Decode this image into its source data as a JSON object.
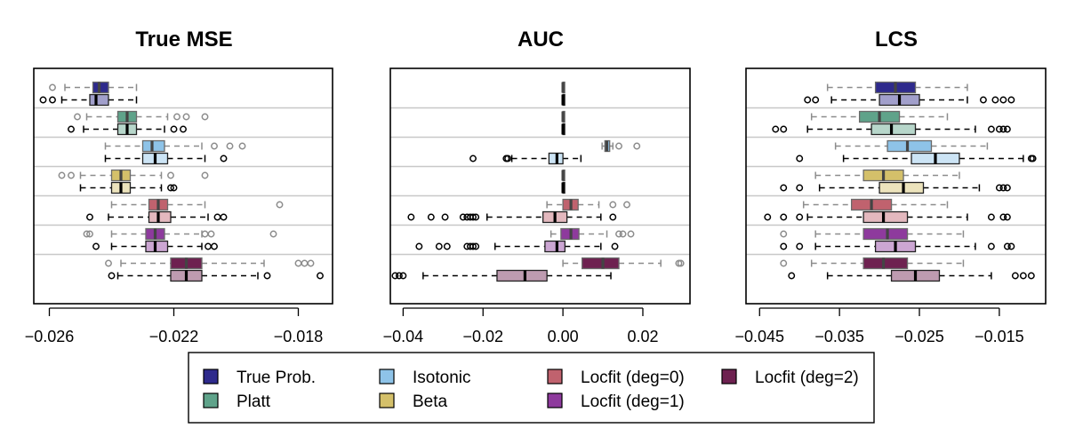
{
  "legend": {
    "entries": [
      {
        "label": "True Prob.",
        "color": "#2E2A8C"
      },
      {
        "label": "Platt",
        "color": "#5FA38A"
      },
      {
        "label": "Isotonic",
        "color": "#8EC3E8"
      },
      {
        "label": "Beta",
        "color": "#D4C06A"
      },
      {
        "label": "Locfit (deg=0)",
        "color": "#C0626E"
      },
      {
        "label": "Locfit (deg=1)",
        "color": "#8E3A9D"
      },
      {
        "label": "Locfit (deg=2)",
        "color": "#6E2150"
      }
    ]
  },
  "chart_data": [
    {
      "type": "boxplot",
      "title": "True MSE",
      "xlim": [
        -0.0265,
        -0.0169
      ],
      "xticks": [
        -0.026,
        -0.022,
        -0.018
      ],
      "xtick_labels": [
        "−0.026",
        "−0.022",
        "−0.018"
      ],
      "groups": [
        {
          "method": "True Prob.",
          "boxes": [
            {
              "variant": "light",
              "min": -0.0255,
              "q1": -0.0246,
              "median": -0.0244,
              "q3": -0.0241,
              "max": -0.0232,
              "outliers": [
                -0.0259
              ]
            },
            {
              "variant": "dark",
              "min": -0.0256,
              "q1": -0.0247,
              "median": -0.0245,
              "q3": -0.0241,
              "max": -0.0232,
              "outliers": [
                -0.0262,
                -0.0259
              ]
            }
          ]
        },
        {
          "method": "Platt",
          "boxes": [
            {
              "variant": "light",
              "min": -0.0248,
              "q1": -0.0238,
              "median": -0.0235,
              "q3": -0.0232,
              "max": -0.0222,
              "outliers": [
                -0.0251,
                -0.0219,
                -0.0216,
                -0.021
              ]
            },
            {
              "variant": "dark",
              "min": -0.0249,
              "q1": -0.0238,
              "median": -0.0235,
              "q3": -0.0232,
              "max": -0.0223,
              "outliers": [
                -0.0253,
                -0.022,
                -0.0217
              ]
            }
          ]
        },
        {
          "method": "Isotonic",
          "boxes": [
            {
              "variant": "light",
              "min": -0.0242,
              "q1": -0.023,
              "median": -0.0227,
              "q3": -0.0223,
              "max": -0.0211,
              "outliers": [
                -0.0207,
                -0.0202,
                -0.0198
              ]
            },
            {
              "variant": "dark",
              "min": -0.0242,
              "q1": -0.023,
              "median": -0.0226,
              "q3": -0.0222,
              "max": -0.021,
              "outliers": [
                -0.0204
              ]
            }
          ]
        },
        {
          "method": "Beta",
          "boxes": [
            {
              "variant": "light",
              "min": -0.025,
              "q1": -0.024,
              "median": -0.0237,
              "q3": -0.0234,
              "max": -0.0224,
              "outliers": [
                -0.0256,
                -0.0253,
                -0.0221,
                -0.021
              ]
            },
            {
              "variant": "dark",
              "min": -0.025,
              "q1": -0.024,
              "median": -0.0237,
              "q3": -0.0234,
              "max": -0.0224,
              "outliers": [
                -0.0221,
                -0.022
              ]
            }
          ]
        },
        {
          "method": "Locfit (deg=0)",
          "boxes": [
            {
              "variant": "light",
              "min": -0.024,
              "q1": -0.0228,
              "median": -0.0225,
              "q3": -0.0222,
              "max": -0.021,
              "outliers": [
                -0.0186
              ]
            },
            {
              "variant": "dark",
              "min": -0.0241,
              "q1": -0.0228,
              "median": -0.0225,
              "q3": -0.0221,
              "max": -0.0209,
              "outliers": [
                -0.0247,
                -0.0206,
                -0.0204
              ]
            }
          ]
        },
        {
          "method": "Locfit (deg=1)",
          "boxes": [
            {
              "variant": "light",
              "min": -0.024,
              "q1": -0.0229,
              "median": -0.0226,
              "q3": -0.0223,
              "max": -0.0211,
              "outliers": [
                -0.0248,
                -0.0247,
                -0.021,
                -0.0208,
                -0.0188
              ]
            },
            {
              "variant": "dark",
              "min": -0.024,
              "q1": -0.0229,
              "median": -0.0226,
              "q3": -0.0222,
              "max": -0.0211,
              "outliers": [
                -0.0245,
                -0.0209,
                -0.0207
              ]
            }
          ]
        },
        {
          "method": "Locfit (deg=2)",
          "boxes": [
            {
              "variant": "light",
              "min": -0.0237,
              "q1": -0.0221,
              "median": -0.0216,
              "q3": -0.0211,
              "max": -0.0191,
              "outliers": [
                -0.0241,
                -0.018,
                -0.0178,
                -0.0176
              ]
            },
            {
              "variant": "dark",
              "min": -0.0238,
              "q1": -0.0221,
              "median": -0.0216,
              "q3": -0.0211,
              "max": -0.0193,
              "outliers": [
                -0.024,
                -0.019,
                -0.0173
              ]
            }
          ]
        }
      ]
    },
    {
      "type": "boxplot",
      "title": "AUC",
      "xlim": [
        -0.0432,
        0.0318
      ],
      "xticks": [
        -0.04,
        -0.02,
        0.0,
        0.02
      ],
      "xtick_labels": [
        "−0.04",
        "−0.02",
        "0.00",
        "0.02"
      ],
      "groups": [
        {
          "method": "True Prob.",
          "boxes": [
            {
              "variant": "light",
              "min": 0.0,
              "q1": 0.0,
              "median": 0.0,
              "q3": 0.0,
              "max": 0.0,
              "outliers": []
            },
            {
              "variant": "dark",
              "min": 0.0,
              "q1": 0.0,
              "median": 0.0,
              "q3": 0.0,
              "max": 0.0,
              "outliers": []
            }
          ]
        },
        {
          "method": "Platt",
          "boxes": [
            {
              "variant": "light",
              "min": 0.0,
              "q1": 0.0,
              "median": 0.0,
              "q3": 0.0,
              "max": 0.0,
              "outliers": []
            },
            {
              "variant": "dark",
              "min": 0.0,
              "q1": 0.0,
              "median": 0.0,
              "q3": 0.0,
              "max": 0.0,
              "outliers": []
            }
          ]
        },
        {
          "method": "Isotonic",
          "boxes": [
            {
              "variant": "light",
              "min": 0.0098,
              "q1": 0.0105,
              "median": 0.011,
              "q3": 0.0117,
              "max": 0.0125,
              "outliers": [
                0.014,
                0.0185
              ]
            },
            {
              "variant": "dark",
              "min": -0.0128,
              "q1": -0.0035,
              "median": -0.0015,
              "q3": 0.0,
              "max": 0.0045,
              "outliers": [
                -0.0225,
                -0.0142,
                -0.0138
              ]
            }
          ]
        },
        {
          "method": "Beta",
          "boxes": [
            {
              "variant": "light",
              "min": 0.0,
              "q1": 0.0,
              "median": 0.0,
              "q3": 0.0,
              "max": 0.0,
              "outliers": []
            },
            {
              "variant": "dark",
              "min": 0.0,
              "q1": 0.0,
              "median": 0.0,
              "q3": 0.0,
              "max": 0.0,
              "outliers": []
            }
          ]
        },
        {
          "method": "Locfit (deg=0)",
          "boxes": [
            {
              "variant": "light",
              "min": -0.004,
              "q1": 0.0,
              "median": 0.002,
              "q3": 0.0038,
              "max": 0.009,
              "outliers": [
                0.0125,
                0.016
              ]
            },
            {
              "variant": "dark",
              "min": -0.019,
              "q1": -0.005,
              "median": -0.002,
              "q3": 0.001,
              "max": 0.0095,
              "outliers": [
                -0.038,
                -0.033,
                -0.0295,
                -0.025,
                -0.024,
                -0.0232,
                -0.0225,
                -0.0218,
                0.0125
              ]
            }
          ]
        },
        {
          "method": "Locfit (deg=1)",
          "boxes": [
            {
              "variant": "light",
              "min": -0.003,
              "q1": -0.0005,
              "median": 0.002,
              "q3": 0.004,
              "max": 0.011,
              "outliers": [
                0.014,
                0.015,
                0.017
              ]
            },
            {
              "variant": "dark",
              "min": -0.017,
              "q1": -0.0045,
              "median": -0.0015,
              "q3": 0.0005,
              "max": 0.0095,
              "outliers": [
                -0.036,
                -0.031,
                -0.029,
                -0.024,
                -0.0232,
                -0.0225,
                -0.0218,
                0.013
              ]
            }
          ]
        },
        {
          "method": "Locfit (deg=2)",
          "boxes": [
            {
              "variant": "light",
              "min": 0.0,
              "q1": 0.0048,
              "median": 0.01,
              "q3": 0.014,
              "max": 0.0245,
              "outliers": [
                0.029,
                0.0295
              ]
            },
            {
              "variant": "dark",
              "min": -0.035,
              "q1": -0.0165,
              "median": -0.0095,
              "q3": -0.004,
              "max": 0.012,
              "outliers": [
                -0.042,
                -0.041,
                -0.04
              ]
            }
          ]
        }
      ]
    },
    {
      "type": "boxplot",
      "title": "LCS",
      "xlim": [
        -0.0467,
        -0.0092
      ],
      "xticks": [
        -0.045,
        -0.035,
        -0.025,
        -0.015
      ],
      "xtick_labels": [
        "−0.045",
        "−0.035",
        "−0.025",
        "−0.015"
      ],
      "groups": [
        {
          "method": "True Prob.",
          "boxes": [
            {
              "variant": "light",
              "min": -0.0365,
              "q1": -0.0305,
              "median": -0.028,
              "q3": -0.0255,
              "max": -0.019,
              "outliers": []
            },
            {
              "variant": "dark",
              "min": -0.036,
              "q1": -0.03,
              "median": -0.0275,
              "q3": -0.025,
              "max": -0.019,
              "outliers": [
                -0.039,
                -0.038,
                -0.017,
                -0.0155,
                -0.0145,
                -0.0135
              ]
            }
          ]
        },
        {
          "method": "Platt",
          "boxes": [
            {
              "variant": "light",
              "min": -0.0385,
              "q1": -0.0325,
              "median": -0.03,
              "q3": -0.0275,
              "max": -0.0215,
              "outliers": []
            },
            {
              "variant": "dark",
              "min": -0.039,
              "q1": -0.031,
              "median": -0.0285,
              "q3": -0.0255,
              "max": -0.018,
              "outliers": [
                -0.043,
                -0.042,
                -0.016,
                -0.015,
                -0.0145,
                -0.014
              ]
            }
          ]
        },
        {
          "method": "Isotonic",
          "boxes": [
            {
              "variant": "light",
              "min": -0.0355,
              "q1": -0.029,
              "median": -0.0265,
              "q3": -0.0235,
              "max": -0.0165,
              "outliers": []
            },
            {
              "variant": "dark",
              "min": -0.0345,
              "q1": -0.026,
              "median": -0.023,
              "q3": -0.02,
              "max": -0.012,
              "outliers": [
                -0.04,
                -0.011,
                -0.0108
              ]
            }
          ]
        },
        {
          "method": "Beta",
          "boxes": [
            {
              "variant": "light",
              "min": -0.038,
              "q1": -0.032,
              "median": -0.0295,
              "q3": -0.027,
              "max": -0.02,
              "outliers": []
            },
            {
              "variant": "dark",
              "min": -0.0375,
              "q1": -0.03,
              "median": -0.027,
              "q3": -0.0245,
              "max": -0.0175,
              "outliers": [
                -0.042,
                -0.04,
                -0.015,
                -0.0145,
                -0.014
              ]
            }
          ]
        },
        {
          "method": "Locfit (deg=0)",
          "boxes": [
            {
              "variant": "light",
              "min": -0.0395,
              "q1": -0.0335,
              "median": -0.031,
              "q3": -0.0285,
              "max": -0.0215,
              "outliers": []
            },
            {
              "variant": "dark",
              "min": -0.039,
              "q1": -0.032,
              "median": -0.0295,
              "q3": -0.0265,
              "max": -0.019,
              "outliers": [
                -0.044,
                -0.042,
                -0.04,
                -0.016,
                -0.0145,
                -0.014
              ]
            }
          ]
        },
        {
          "method": "Locfit (deg=1)",
          "boxes": [
            {
              "variant": "light",
              "min": -0.038,
              "q1": -0.032,
              "median": -0.029,
              "q3": -0.0265,
              "max": -0.0195,
              "outliers": [
                -0.042
              ]
            },
            {
              "variant": "dark",
              "min": -0.038,
              "q1": -0.0305,
              "median": -0.028,
              "q3": -0.0255,
              "max": -0.018,
              "outliers": [
                -0.042,
                -0.04,
                -0.016,
                -0.014,
                -0.0135
              ]
            }
          ]
        },
        {
          "method": "Locfit (deg=2)",
          "boxes": [
            {
              "variant": "light",
              "min": -0.0385,
              "q1": -0.032,
              "median": -0.0295,
              "q3": -0.0265,
              "max": -0.0195,
              "outliers": [
                -0.042
              ]
            },
            {
              "variant": "dark",
              "min": -0.0365,
              "q1": -0.0285,
              "median": -0.0255,
              "q3": -0.0225,
              "max": -0.016,
              "outliers": [
                -0.041,
                -0.013,
                -0.012,
                -0.011
              ]
            }
          ]
        }
      ]
    }
  ]
}
